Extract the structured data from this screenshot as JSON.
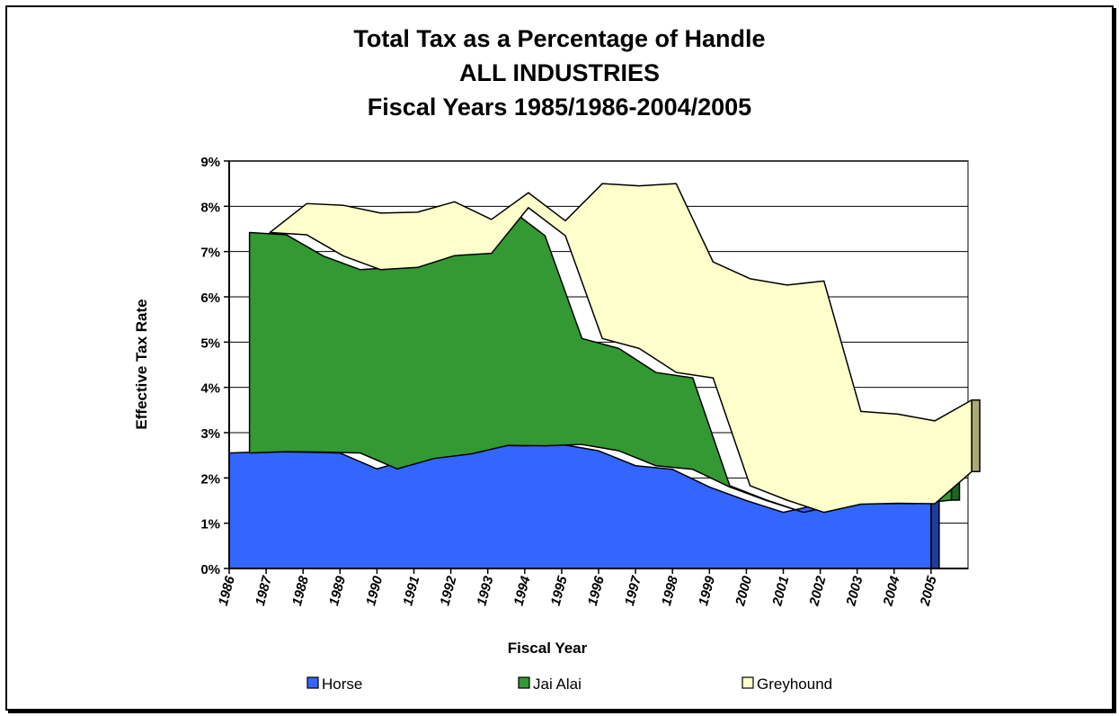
{
  "chart_data": {
    "type": "area",
    "title": [
      "Total Tax as a Percentage of Handle",
      "ALL INDUSTRIES",
      "Fiscal Years 1985/1986-2004/2005"
    ],
    "xlabel": "Fiscal Year",
    "ylabel": "Effective Tax Rate",
    "categories": [
      "1986",
      "1987",
      "1988",
      "1989",
      "1990",
      "1991",
      "1992",
      "1993",
      "1994",
      "1995",
      "1996",
      "1997",
      "1998",
      "1999",
      "2000",
      "2001",
      "2002",
      "2003",
      "2004",
      "2005"
    ],
    "ylim": [
      0,
      9
    ],
    "yticks": [
      "0%",
      "1%",
      "2%",
      "3%",
      "4%",
      "5%",
      "6%",
      "7%",
      "8%",
      "9%"
    ],
    "stacked": true,
    "grid": true,
    "legend_position": "bottom",
    "series": [
      {
        "name": "Horse",
        "color": "#3366ff",
        "side_color": "#1f3d99",
        "values": [
          2.55,
          2.58,
          2.57,
          2.55,
          2.2,
          2.43,
          2.53,
          2.72,
          2.71,
          2.74,
          2.6,
          2.27,
          2.19,
          1.8,
          1.5,
          1.24,
          1.42,
          1.44,
          1.43,
          1.51
        ]
      },
      {
        "name": "Jai Alai",
        "color": "#339933",
        "side_color": "#1f661f",
        "values": [
          4.87,
          4.79,
          4.33,
          4.05,
          4.45,
          4.48,
          4.43,
          5.25,
          4.64,
          2.34,
          2.26,
          2.06,
          2.02,
          0.03,
          0.01,
          0.0,
          0.0,
          0.0,
          0.0,
          0.63
        ]
      },
      {
        "name": "Greyhound",
        "color": "#ffffcc",
        "side_color": "#aaaa77",
        "values": [
          0.0,
          0.69,
          1.12,
          1.25,
          1.22,
          1.19,
          0.75,
          0.33,
          0.33,
          3.42,
          3.59,
          4.17,
          2.56,
          4.57,
          4.75,
          5.11,
          2.05,
          1.97,
          1.83,
          1.58
        ]
      }
    ]
  }
}
